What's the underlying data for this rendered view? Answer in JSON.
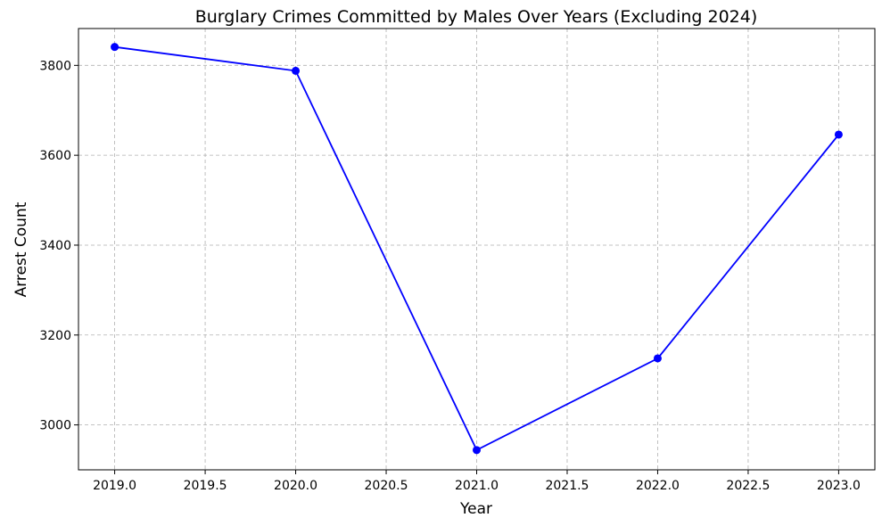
{
  "chart_data": {
    "type": "line",
    "title": "Burglary Crimes Committed by Males Over Years (Excluding 2024)",
    "xlabel": "Year",
    "ylabel": "Arrest Count",
    "x": [
      2019,
      2020,
      2021,
      2022,
      2023
    ],
    "series": [
      {
        "values": [
          3841,
          3788,
          2944,
          3148,
          3646
        ]
      }
    ],
    "xlim": [
      2018.8,
      2023.2
    ],
    "ylim": [
      2900,
      3882
    ],
    "xticks": [
      2019.0,
      2019.5,
      2020.0,
      2020.5,
      2021.0,
      2021.5,
      2022.0,
      2022.5,
      2023.0
    ],
    "xtick_labels": [
      "2019.0",
      "2019.5",
      "2020.0",
      "2020.5",
      "2021.0",
      "2021.5",
      "2022.0",
      "2022.5",
      "2023.0"
    ],
    "yticks": [
      3000,
      3200,
      3400,
      3600,
      3800
    ],
    "ytick_labels": [
      "3000",
      "3200",
      "3400",
      "3600",
      "3800"
    ],
    "grid": true,
    "line_color": "#0000ff",
    "marker": "circle"
  }
}
